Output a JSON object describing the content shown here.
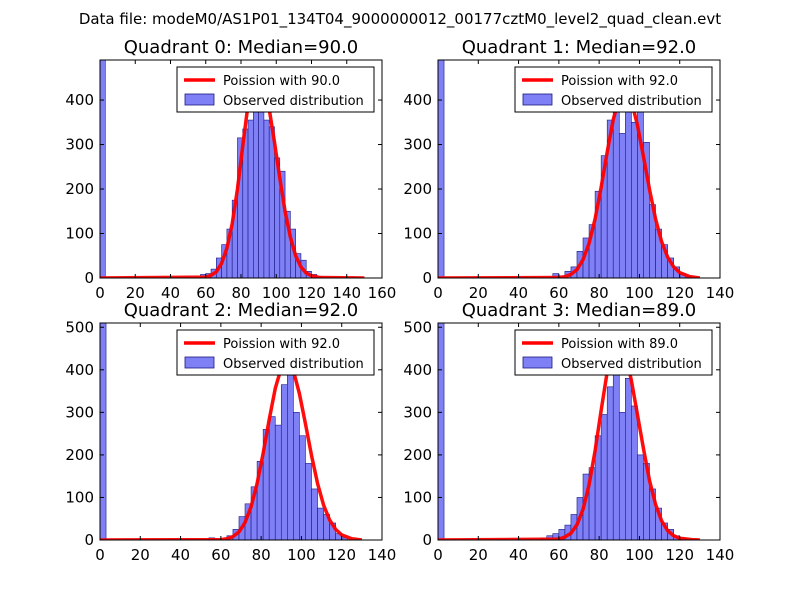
{
  "suptitle": "Data file: modeM0/AS1P01_134T04_9000000012_00177cztM0_level2_quad_clean.evt",
  "colors": {
    "bar_fill": "#7f7ff6",
    "bar_edge": "#1a1a80",
    "poisson_line": "#ff0000",
    "frame": "#000000"
  },
  "chart_data": [
    {
      "type": "bar",
      "title": "Quadrant 0: Median=90.0",
      "xlim": [
        0,
        160
      ],
      "xticks": [
        0,
        20,
        40,
        60,
        80,
        100,
        120,
        140,
        160
      ],
      "ylim": [
        0,
        490
      ],
      "yticks": [
        0,
        100,
        200,
        300,
        400
      ],
      "bin_width": 3,
      "legend_position": "top-right",
      "legend": [
        "Poission with 90.0",
        "Observed distribution"
      ],
      "bins": [
        [
          0,
          1000
        ],
        [
          57,
          8
        ],
        [
          60,
          10
        ],
        [
          63,
          20
        ],
        [
          66,
          45
        ],
        [
          69,
          75
        ],
        [
          72,
          110
        ],
        [
          75,
          175
        ],
        [
          78,
          315
        ],
        [
          81,
          335
        ],
        [
          84,
          355
        ],
        [
          87,
          420
        ],
        [
          90,
          390
        ],
        [
          93,
          355
        ],
        [
          96,
          340
        ],
        [
          99,
          270
        ],
        [
          102,
          240
        ],
        [
          105,
          150
        ],
        [
          108,
          110
        ],
        [
          111,
          55
        ],
        [
          114,
          40
        ],
        [
          117,
          15
        ],
        [
          120,
          8
        ],
        [
          123,
          3
        ]
      ],
      "poisson": [
        [
          0,
          0
        ],
        [
          60,
          2
        ],
        [
          63,
          6
        ],
        [
          66,
          14
        ],
        [
          69,
          33
        ],
        [
          72,
          67
        ],
        [
          75,
          122
        ],
        [
          78,
          200
        ],
        [
          81,
          297
        ],
        [
          84,
          390
        ],
        [
          87,
          455
        ],
        [
          90,
          470
        ],
        [
          93,
          440
        ],
        [
          96,
          380
        ],
        [
          99,
          305
        ],
        [
          102,
          225
        ],
        [
          105,
          150
        ],
        [
          108,
          92
        ],
        [
          111,
          50
        ],
        [
          114,
          25
        ],
        [
          117,
          11
        ],
        [
          120,
          5
        ],
        [
          125,
          1
        ],
        [
          150,
          0
        ]
      ]
    },
    {
      "type": "bar",
      "title": "Quadrant 1: Median=92.0",
      "xlim": [
        0,
        140
      ],
      "xticks": [
        0,
        20,
        40,
        60,
        80,
        100,
        120,
        140
      ],
      "ylim": [
        0,
        490
      ],
      "yticks": [
        0,
        100,
        200,
        300,
        400
      ],
      "bin_width": 3,
      "legend_position": "top-right",
      "legend": [
        "Poission with 92.0",
        "Observed distribution"
      ],
      "bins": [
        [
          0,
          1000
        ],
        [
          57,
          10
        ],
        [
          60,
          5
        ],
        [
          63,
          15
        ],
        [
          66,
          25
        ],
        [
          69,
          60
        ],
        [
          72,
          90
        ],
        [
          75,
          120
        ],
        [
          78,
          195
        ],
        [
          81,
          275
        ],
        [
          84,
          355
        ],
        [
          87,
          400
        ],
        [
          90,
          325
        ],
        [
          93,
          440
        ],
        [
          96,
          350
        ],
        [
          99,
          380
        ],
        [
          102,
          305
        ],
        [
          105,
          165
        ],
        [
          108,
          110
        ],
        [
          111,
          75
        ],
        [
          114,
          45
        ],
        [
          117,
          25
        ],
        [
          120,
          10
        ],
        [
          123,
          4
        ]
      ],
      "poisson": [
        [
          0,
          0
        ],
        [
          60,
          1
        ],
        [
          63,
          3
        ],
        [
          66,
          8
        ],
        [
          69,
          19
        ],
        [
          72,
          41
        ],
        [
          75,
          78
        ],
        [
          78,
          133
        ],
        [
          81,
          204
        ],
        [
          84,
          283
        ],
        [
          87,
          356
        ],
        [
          90,
          405
        ],
        [
          93,
          420
        ],
        [
          96,
          398
        ],
        [
          99,
          344
        ],
        [
          102,
          273
        ],
        [
          105,
          199
        ],
        [
          108,
          133
        ],
        [
          111,
          82
        ],
        [
          114,
          47
        ],
        [
          117,
          25
        ],
        [
          120,
          12
        ],
        [
          125,
          3
        ],
        [
          130,
          0
        ]
      ]
    },
    {
      "type": "bar",
      "title": "Quadrant 2: Median=92.0",
      "xlim": [
        0,
        140
      ],
      "xticks": [
        0,
        20,
        40,
        60,
        80,
        100,
        120,
        140
      ],
      "ylim": [
        0,
        510
      ],
      "yticks": [
        0,
        100,
        200,
        300,
        400,
        500
      ],
      "bin_width": 3,
      "legend_position": "top-right",
      "legend": [
        "Poission with 92.0",
        "Observed distribution"
      ],
      "bins": [
        [
          0,
          1000
        ],
        [
          54,
          5
        ],
        [
          63,
          10
        ],
        [
          66,
          25
        ],
        [
          69,
          55
        ],
        [
          72,
          85
        ],
        [
          75,
          125
        ],
        [
          78,
          185
        ],
        [
          81,
          260
        ],
        [
          84,
          290
        ],
        [
          87,
          270
        ],
        [
          90,
          365
        ],
        [
          93,
          400
        ],
        [
          96,
          300
        ],
        [
          99,
          245
        ],
        [
          102,
          180
        ],
        [
          105,
          120
        ],
        [
          108,
          75
        ],
        [
          111,
          60
        ],
        [
          114,
          40
        ],
        [
          117,
          15
        ],
        [
          120,
          5
        ]
      ],
      "poisson": [
        [
          0,
          0
        ],
        [
          60,
          1
        ],
        [
          63,
          3
        ],
        [
          66,
          8
        ],
        [
          69,
          19
        ],
        [
          72,
          41
        ],
        [
          75,
          78
        ],
        [
          78,
          133
        ],
        [
          81,
          204
        ],
        [
          84,
          283
        ],
        [
          87,
          356
        ],
        [
          90,
          405
        ],
        [
          93,
          420
        ],
        [
          96,
          398
        ],
        [
          99,
          344
        ],
        [
          102,
          273
        ],
        [
          105,
          199
        ],
        [
          108,
          133
        ],
        [
          111,
          82
        ],
        [
          114,
          47
        ],
        [
          117,
          25
        ],
        [
          120,
          12
        ],
        [
          125,
          3
        ],
        [
          130,
          0
        ]
      ]
    },
    {
      "type": "bar",
      "title": "Quadrant 3: Median=89.0",
      "xlim": [
        0,
        140
      ],
      "xticks": [
        0,
        20,
        40,
        60,
        80,
        100,
        120,
        140
      ],
      "ylim": [
        0,
        510
      ],
      "yticks": [
        0,
        100,
        200,
        300,
        400,
        500
      ],
      "bin_width": 3,
      "legend_position": "top-right",
      "legend": [
        "Poission with 89.0",
        "Observed distribution"
      ],
      "bins": [
        [
          0,
          1000
        ],
        [
          51,
          5
        ],
        [
          54,
          10
        ],
        [
          57,
          15
        ],
        [
          60,
          25
        ],
        [
          63,
          35
        ],
        [
          66,
          60
        ],
        [
          69,
          100
        ],
        [
          72,
          155
        ],
        [
          75,
          170
        ],
        [
          78,
          245
        ],
        [
          81,
          295
        ],
        [
          84,
          360
        ],
        [
          87,
          420
        ],
        [
          90,
          300
        ],
        [
          93,
          380
        ],
        [
          96,
          315
        ],
        [
          99,
          200
        ],
        [
          102,
          180
        ],
        [
          105,
          120
        ],
        [
          108,
          75
        ],
        [
          111,
          40
        ],
        [
          114,
          25
        ],
        [
          117,
          10
        ],
        [
          120,
          5
        ]
      ],
      "poisson": [
        [
          0,
          0
        ],
        [
          60,
          2
        ],
        [
          63,
          7
        ],
        [
          66,
          16
        ],
        [
          69,
          36
        ],
        [
          72,
          72
        ],
        [
          75,
          130
        ],
        [
          78,
          210
        ],
        [
          81,
          305
        ],
        [
          84,
          395
        ],
        [
          87,
          455
        ],
        [
          90,
          470
        ],
        [
          93,
          440
        ],
        [
          96,
          375
        ],
        [
          99,
          295
        ],
        [
          102,
          215
        ],
        [
          105,
          140
        ],
        [
          108,
          84
        ],
        [
          111,
          45
        ],
        [
          114,
          22
        ],
        [
          117,
          10
        ],
        [
          120,
          4
        ],
        [
          126,
          1
        ],
        [
          130,
          0
        ]
      ]
    }
  ]
}
